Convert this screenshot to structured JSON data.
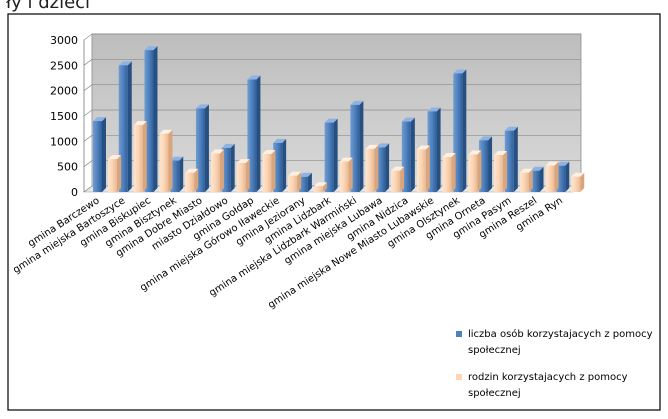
{
  "header_fragment": "ły i dzieci",
  "chart_data": {
    "type": "bar",
    "title": "",
    "xlabel": "",
    "ylabel": "",
    "ylim": [
      0,
      3000
    ],
    "yticks": [
      0,
      500,
      1000,
      1500,
      2000,
      2500,
      3000
    ],
    "grid": true,
    "legend_position": "bottom-right",
    "categories": [
      "gmina Barczewo",
      "gmina miejska Bartoszyce",
      "gmina Biskupiec",
      "gmina Bisztynek",
      "gmina Dobre Miasto",
      "miasto Działdowo",
      "gmina Gołdap",
      "gmina miejska Górowo Iławeckie",
      "gmina Jeziorany",
      "gmina Lidzbark",
      "gmina miejska Lidzbark Warmiński",
      "gmina miejska Lubawa",
      "gmina Nidzica",
      "gmina miejska Nowe Miasto Lubawskie",
      "gmina Olsztynek",
      "gmina Orneta",
      "gmina Pasym",
      "gmina Reszel",
      "gmina Ryn"
    ],
    "series": [
      {
        "name": "liczba osób korzystajacych z pomocy społecznej",
        "color": "#4f81bd",
        "values": [
          1400,
          2500,
          2800,
          620,
          1650,
          870,
          2220,
          970,
          300,
          1370,
          1720,
          880,
          1390,
          1590,
          2340,
          1020,
          1210,
          420,
          520
        ]
      },
      {
        "name": "rodzin korzystajacych z pomocy społecznej",
        "color": "#fcd5b5",
        "values": [
          650,
          1320,
          1150,
          380,
          760,
          570,
          750,
          320,
          110,
          600,
          850,
          420,
          840,
          690,
          740,
          730,
          380,
          520,
          300
        ]
      }
    ]
  }
}
